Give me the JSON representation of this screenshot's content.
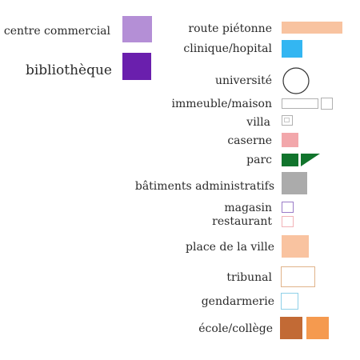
{
  "legend": {
    "left": [
      {
        "label": "centre commercial",
        "color": "#b48fd6"
      },
      {
        "label": "bibliothèque",
        "color": "#6a1fad"
      }
    ],
    "right": {
      "route_pietonne": {
        "label": "route piétonne",
        "color": "#f8c3a0"
      },
      "clinique": {
        "label": "clinique/hopital",
        "color": "#33b6f2"
      },
      "universite": {
        "label": "université",
        "color": "#ffffff",
        "stroke": "#333333"
      },
      "immeuble": {
        "label": "immeuble/maison",
        "stroke": "#b0b0b0"
      },
      "villa": {
        "label": "villa",
        "stroke": "#b0b0b0"
      },
      "caserne": {
        "label": "caserne",
        "color": "#f2a7ab"
      },
      "parc": {
        "label": "parc",
        "color": "#11742c"
      },
      "batiments": {
        "label": "bâtiments administratifs",
        "color": "#ababab"
      },
      "magasin": {
        "label": "magasin",
        "stroke": "#9b7cc8"
      },
      "restaurant": {
        "label": "restaurant",
        "stroke": "#f2b3b8"
      },
      "place": {
        "label": "place de la ville",
        "color": "#f9c3a0"
      },
      "tribunal": {
        "label": "tribunal",
        "stroke": "#e0b48a"
      },
      "gendarmerie": {
        "label": "gendarmerie",
        "stroke": "#8fd0e8"
      },
      "ecole": {
        "label": "école/collège",
        "colors": [
          "#c26a35",
          "#f59a4f"
        ]
      }
    }
  }
}
